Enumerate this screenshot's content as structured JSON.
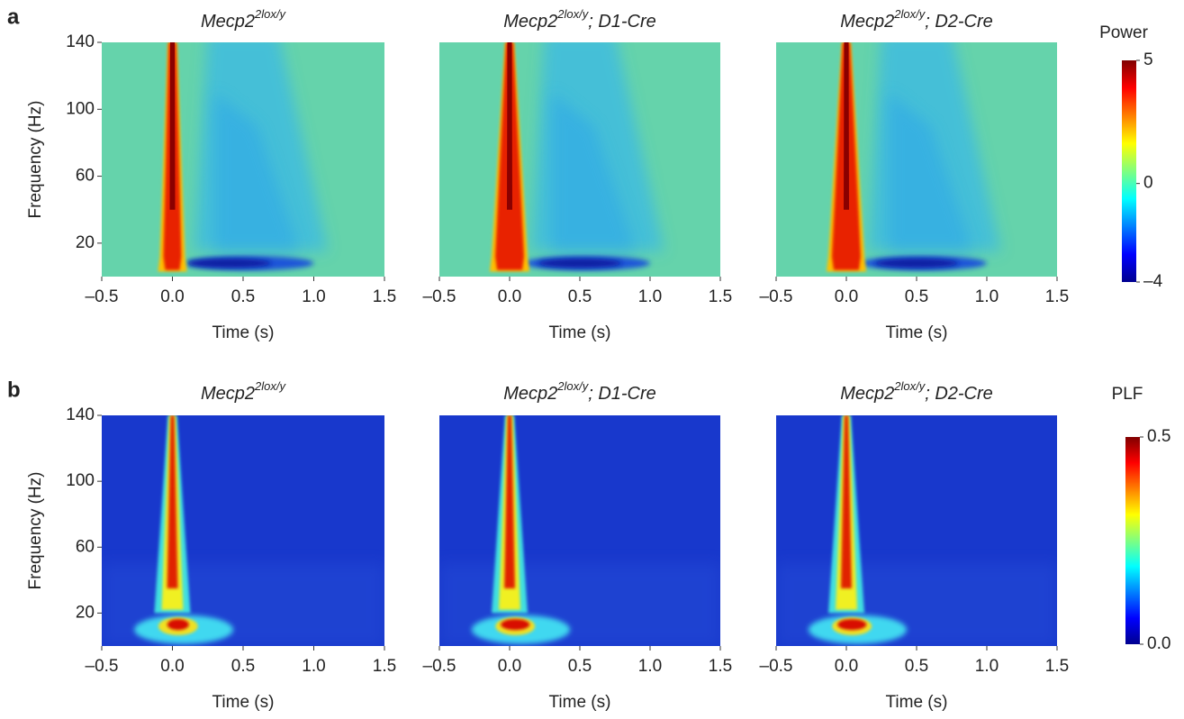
{
  "panel_labels": [
    "a",
    "b"
  ],
  "chart_data": [
    {
      "type": "heatmap",
      "title": {
        "text": "Mecp2",
        "sup": "2lox/y"
      },
      "xlabel": "Time (s)",
      "ylabel": "Frequency (Hz)",
      "xlim": [
        -0.5,
        1.5
      ],
      "xticks": [
        {
          "value": -0.5,
          "label": "–0.5"
        },
        {
          "value": 0,
          "label": "0.0"
        },
        0.5,
        {
          "value": 1,
          "label": "1.0"
        },
        1.5
      ],
      "ylim": [
        0,
        140
      ],
      "yticks": [
        20,
        60,
        100,
        140
      ],
      "colormap": "jet",
      "colorbar": 0
    },
    {
      "type": "heatmap",
      "title": {
        "text": "Mecp2",
        "sup": "2lox/y",
        "suffix": "; D1-Cre"
      },
      "xlabel": "Time (s)",
      "xlim": [
        -0.5,
        1.5
      ],
      "xticks": [
        {
          "value": -0.5,
          "label": "–0.5"
        },
        {
          "value": 0,
          "label": "0.0"
        },
        0.5,
        {
          "value": 1,
          "label": "1.0"
        },
        1.5
      ],
      "ylim": [
        0,
        140
      ],
      "colormap": "jet",
      "colorbar": 0
    },
    {
      "type": "heatmap",
      "title": {
        "text": "Mecp2",
        "sup": "2lox/y",
        "suffix": "; D2-Cre"
      },
      "xlabel": "Time (s)",
      "xlim": [
        -0.5,
        1.5
      ],
      "xticks": [
        {
          "value": -0.5,
          "label": "–0.5"
        },
        {
          "value": 0,
          "label": "0.0"
        },
        0.5,
        {
          "value": 1,
          "label": "1.0"
        },
        1.5
      ],
      "ylim": [
        0,
        140
      ],
      "colormap": "jet",
      "colorbar": 0
    },
    {
      "type": "heatmap",
      "title": {
        "text": "Mecp2",
        "sup": "2lox/y"
      },
      "xlabel": "Time (s)",
      "ylabel": "Frequency (Hz)",
      "xlim": [
        -0.5,
        1.5
      ],
      "xticks": [
        {
          "value": -0.5,
          "label": "–0.5"
        },
        {
          "value": 0,
          "label": "0.0"
        },
        0.5,
        {
          "value": 1,
          "label": "1.0"
        },
        1.5
      ],
      "ylim": [
        0,
        140
      ],
      "yticks": [
        20,
        60,
        100,
        140
      ],
      "colormap": "jet",
      "colorbar": 1
    },
    {
      "type": "heatmap",
      "title": {
        "text": "Mecp2",
        "sup": "2lox/y",
        "suffix": "; D1-Cre"
      },
      "xlabel": "Time (s)",
      "xlim": [
        -0.5,
        1.5
      ],
      "xticks": [
        {
          "value": -0.5,
          "label": "–0.5"
        },
        {
          "value": 0,
          "label": "0.0"
        },
        0.5,
        {
          "value": 1,
          "label": "1.0"
        },
        1.5
      ],
      "ylim": [
        0,
        140
      ],
      "colormap": "jet",
      "colorbar": 1
    },
    {
      "type": "heatmap",
      "title": {
        "text": "Mecp2",
        "sup": "2lox/y",
        "suffix": "; D2-Cre"
      },
      "xlabel": "Time (s)",
      "xlim": [
        -0.5,
        1.5
      ],
      "xticks": [
        {
          "value": -0.5,
          "label": "–0.5"
        },
        {
          "value": 0,
          "label": "0.0"
        },
        0.5,
        {
          "value": 1,
          "label": "1.0"
        },
        1.5
      ],
      "ylim": [
        0,
        140
      ],
      "colormap": "jet",
      "colorbar": 1
    }
  ],
  "colorbars": [
    {
      "label": "Power",
      "clim": [
        -4,
        5
      ],
      "ticks": [
        {
          "value": -4,
          "label": "–4"
        },
        0,
        5
      ]
    },
    {
      "label": "PLF",
      "clim": [
        0,
        0.5
      ],
      "ticks": [
        {
          "value": 0,
          "label": "0.0"
        },
        0.5
      ]
    }
  ]
}
